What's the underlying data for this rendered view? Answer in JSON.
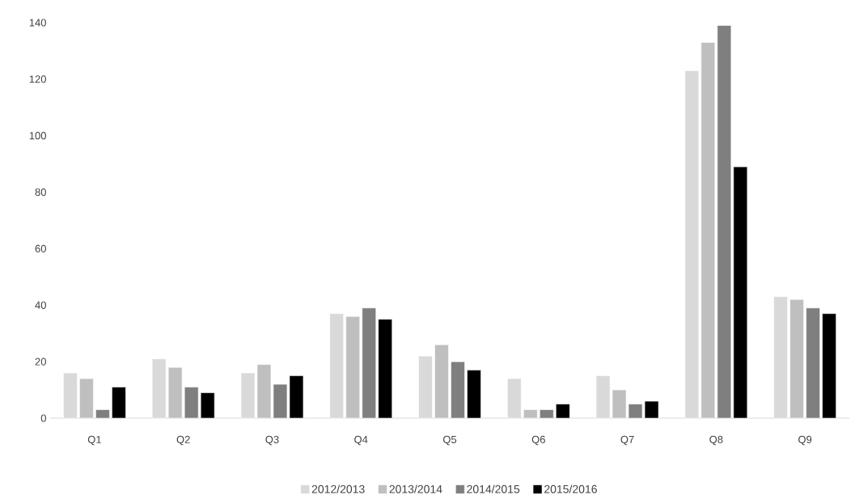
{
  "chart_data": {
    "type": "bar",
    "categories": [
      "Q1",
      "Q2",
      "Q3",
      "Q4",
      "Q5",
      "Q6",
      "Q7",
      "Q8",
      "Q9"
    ],
    "series": [
      {
        "name": "2012/2013",
        "color": "#d9d9d9",
        "values": [
          16,
          21,
          16,
          37,
          22,
          14,
          15,
          123,
          43
        ]
      },
      {
        "name": "2013/2014",
        "color": "#bfbfbf",
        "values": [
          14,
          18,
          19,
          36,
          26,
          3,
          10,
          133,
          42
        ]
      },
      {
        "name": "2014/2015",
        "color": "#7f7f7f",
        "values": [
          3,
          11,
          12,
          39,
          20,
          3,
          5,
          139,
          39
        ]
      },
      {
        "name": "2015/2016",
        "color": "#000000",
        "values": [
          11,
          9,
          15,
          35,
          17,
          5,
          6,
          89,
          37
        ]
      }
    ],
    "ylim": [
      0,
      140
    ],
    "yticks": [
      0,
      20,
      40,
      60,
      80,
      100,
      120,
      140
    ],
    "legend": "bottom"
  }
}
